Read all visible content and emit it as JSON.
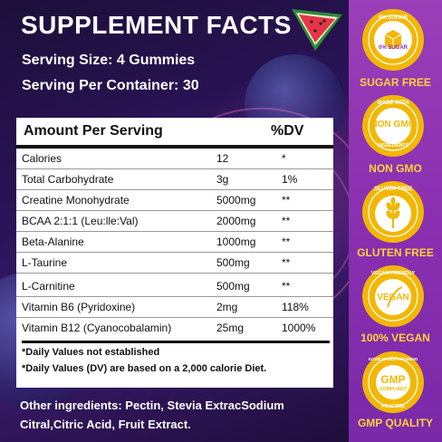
{
  "title": "SUPPLEMENT FACTS",
  "serving_size": "Serving Size: 4 Gummies",
  "serving_per_container": "Serving Per Container: 30",
  "table": {
    "header_amount": "Amount Per Serving",
    "header_dv": "%DV",
    "rows": [
      {
        "name": "Calories",
        "amount": "12",
        "dv": "*"
      },
      {
        "name": "Total Carbohydrate",
        "amount": "3g",
        "dv": "1%"
      },
      {
        "name": "Creatine Monohydrate",
        "amount": "5000mg",
        "dv": "**"
      },
      {
        "name": "BCAA 2:1:1 (Leu:lle:Val)",
        "amount": "2000mg",
        "dv": "**"
      },
      {
        "name": "Beta-Alanine",
        "amount": "1000mg",
        "dv": "**"
      },
      {
        "name": "L-Taurine",
        "amount": "500mg",
        "dv": "**"
      },
      {
        "name": "L-Carnitine",
        "amount": "500mg",
        "dv": "**"
      },
      {
        "name": "Vitamin B6 (Pyridoxine)",
        "amount": "2mg",
        "dv": "118%"
      },
      {
        "name": "Vitamin B12 (Cyanocobalamin)",
        "amount": "25mg",
        "dv": "1000%"
      }
    ],
    "note_1": "*Daily Values not established",
    "note_2": "*Daily Values (DV) are based on a 2,000 calorie Diet."
  },
  "other_ingredients": "Other ingredients: Pectin, Stevia ExtracSodium Citral,Citric Acid, Fruit Extract.",
  "badges": [
    {
      "label": "SUGAR FREE",
      "ring_top": "0% SUGAR",
      "center": "0% SUGAR",
      "icon": "sugar-cube-icon"
    },
    {
      "label": "NON GMO",
      "ring_top": "MADE WITH",
      "center": "NON GMO",
      "ring_bottom": "INGREDIENTS",
      "icon": "non-gmo-icon"
    },
    {
      "label": "GLUTEN FREE",
      "ring_top": "GLUTEN FREE",
      "icon": "wheat-icon"
    },
    {
      "label": "100% VEGAN",
      "ring_top": "VEGAN-FRIENDLY",
      "center": "VEGAN",
      "icon": "vegan-icon"
    },
    {
      "label": "GMP QUALITY",
      "ring_top": "GOOD MANUFACTURING",
      "center": "GMP",
      "center_sub": "COMPLIANT",
      "ring_bottom": "PRACTICE",
      "icon": "gmp-icon"
    }
  ],
  "colors": {
    "badge_gold": "#f2b705",
    "label_gold": "#ffd23a",
    "sidebar_purple": "#8a2fb0"
  }
}
